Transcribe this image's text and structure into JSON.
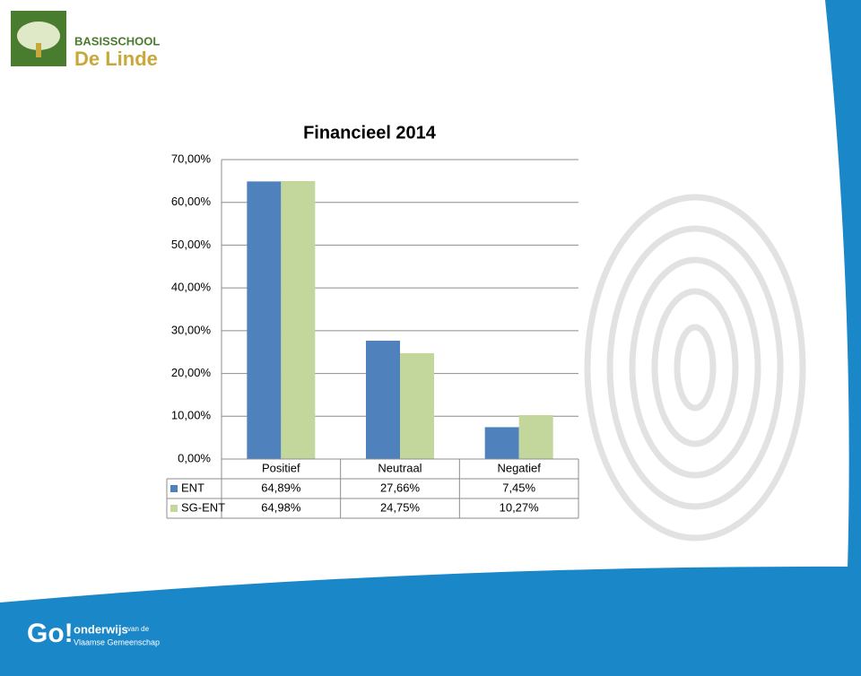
{
  "logo": {
    "line1": "BASISSCHOOL",
    "line2": "De Linde"
  },
  "footer": {
    "brand": "Go!",
    "line1": "onderwijs",
    "line1_small": "van de",
    "line2": "Vlaamse Gemeenschap"
  },
  "chart_data": {
    "type": "bar",
    "title": "Financieel 2014",
    "categories": [
      "Positief",
      "Neutraal",
      "Negatief"
    ],
    "series": [
      {
        "name": "ENT",
        "color": "#4f81bd",
        "values": [
          64.89,
          27.66,
          7.45
        ],
        "value_labels": [
          "64,89%",
          "27,66%",
          "7,45%"
        ]
      },
      {
        "name": "SG-ENT",
        "color": "#c3d69b",
        "values": [
          64.98,
          24.75,
          10.27
        ],
        "value_labels": [
          "64,98%",
          "24,75%",
          "10,27%"
        ]
      }
    ],
    "ylim": [
      0,
      70
    ],
    "yticks": [
      {
        "value": 0,
        "label": "0,00%"
      },
      {
        "value": 10,
        "label": "10,00%"
      },
      {
        "value": 20,
        "label": "20,00%"
      },
      {
        "value": 30,
        "label": "30,00%"
      },
      {
        "value": 40,
        "label": "40,00%"
      },
      {
        "value": 50,
        "label": "50,00%"
      },
      {
        "value": 60,
        "label": "60,00%"
      },
      {
        "value": 70,
        "label": "70,00%"
      }
    ],
    "grid": true,
    "data_table": true
  }
}
